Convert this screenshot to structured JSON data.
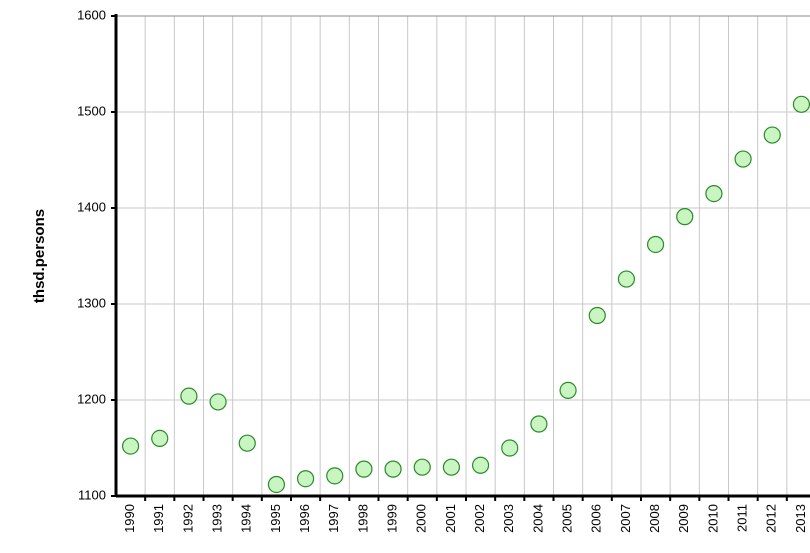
{
  "chart_data": {
    "type": "scatter",
    "y_label": "thsd.persons",
    "categories": [
      "1990",
      "1991",
      "1992",
      "1993",
      "1994",
      "1995",
      "1996",
      "1997",
      "1998",
      "1999",
      "2000",
      "2001",
      "2002",
      "2003",
      "2004",
      "2005",
      "2006",
      "2007",
      "2008",
      "2009",
      "2010",
      "2011",
      "2012",
      "2013"
    ],
    "values": [
      1152,
      1160,
      1204,
      1198,
      1155,
      1112,
      1118,
      1121,
      1128,
      1128,
      1130,
      1130,
      1132,
      1150,
      1175,
      1210,
      1288,
      1326,
      1362,
      1391,
      1415,
      1451,
      1476,
      1508
    ],
    "color": "#c8f5c0",
    "edge_color": "#2a8a2a",
    "ylim": [
      1100,
      1600
    ],
    "yticks": [
      1100,
      1200,
      1300,
      1400,
      1500,
      1600
    ],
    "grid": true
  }
}
